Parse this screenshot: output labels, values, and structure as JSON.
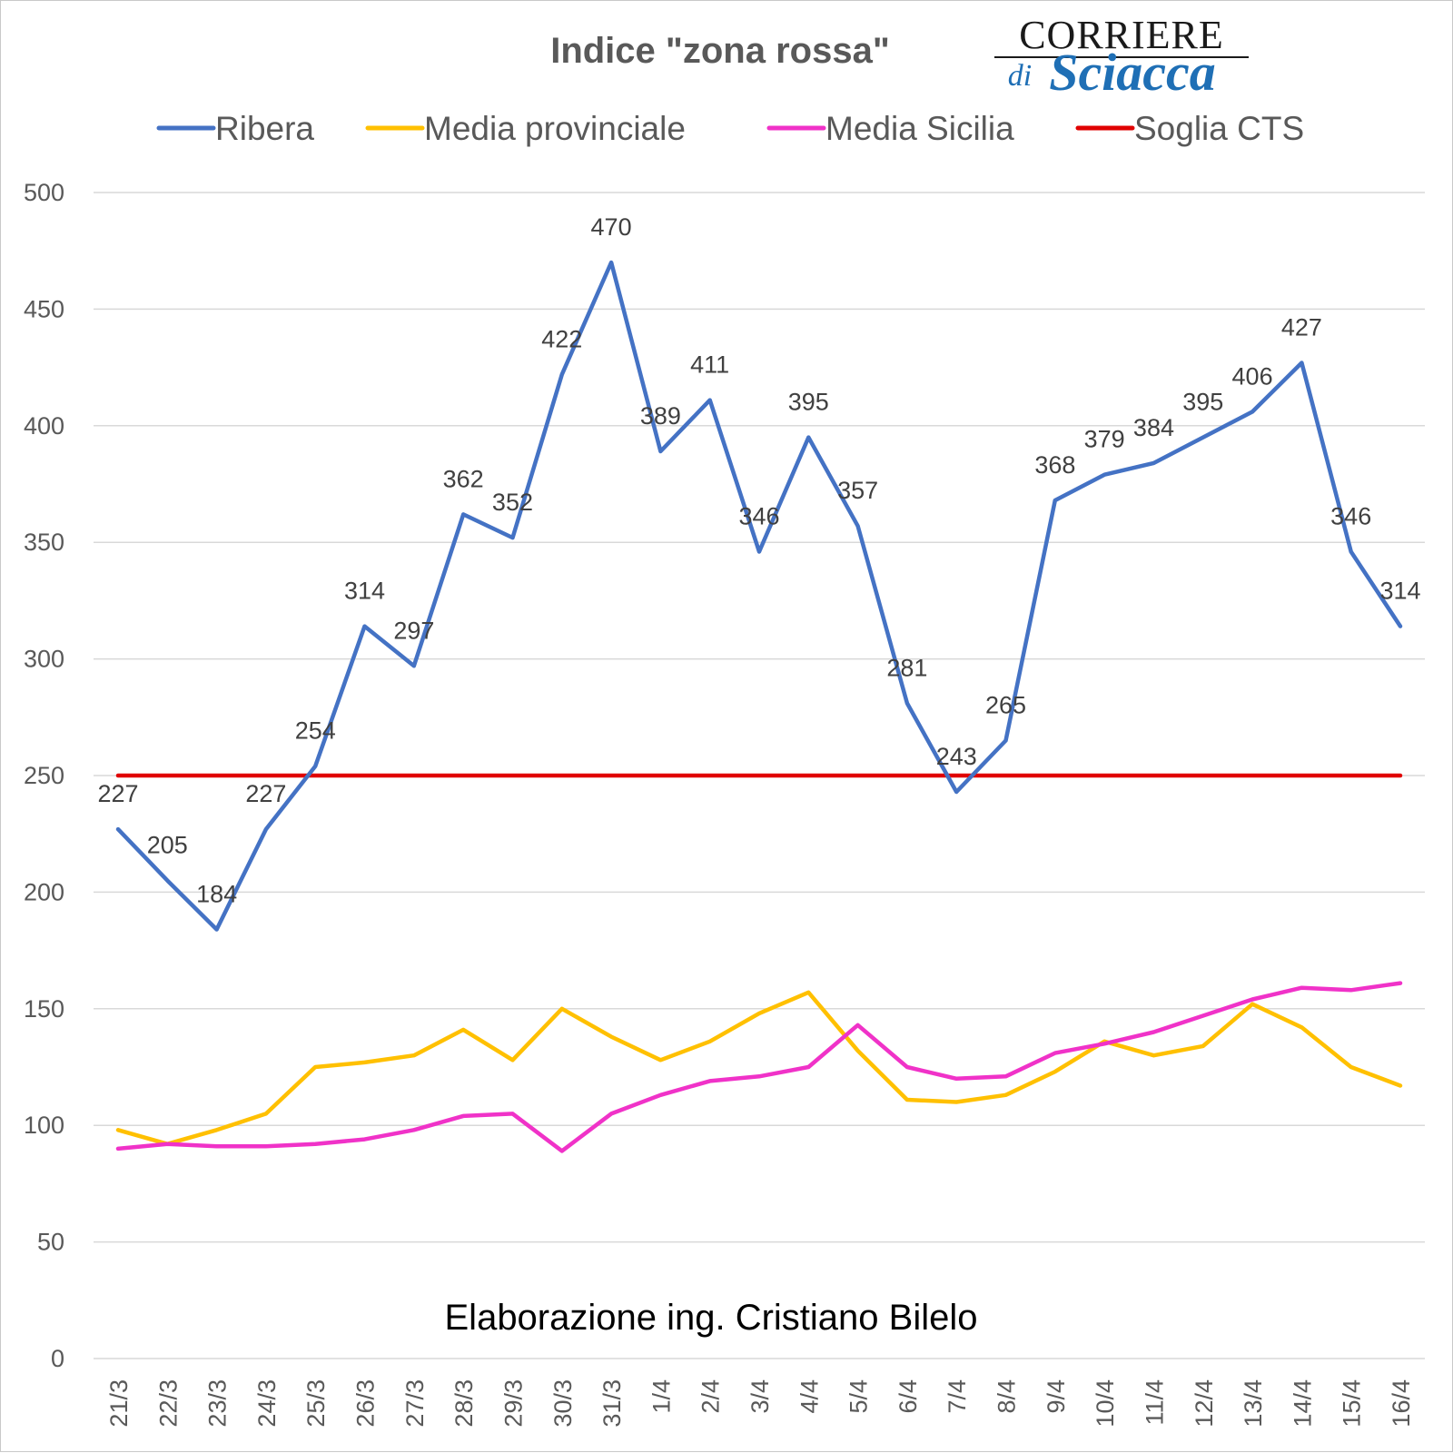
{
  "chart_data": {
    "type": "line",
    "title": "Indice \"zona rossa\"",
    "categories": [
      "21/3",
      "22/3",
      "23/3",
      "24/3",
      "25/3",
      "26/3",
      "27/3",
      "28/3",
      "29/3",
      "30/3",
      "31/3",
      "1/4",
      "2/4",
      "3/4",
      "4/4",
      "5/4",
      "6/4",
      "7/4",
      "8/4",
      "9/4",
      "10/4",
      "11/4",
      "12/4",
      "13/4",
      "14/4",
      "15/4",
      "16/4"
    ],
    "series": [
      {
        "name": "Ribera",
        "color": "#4472c4",
        "show_labels": true,
        "values": [
          227,
          205,
          184,
          227,
          254,
          314,
          297,
          362,
          352,
          422,
          470,
          389,
          411,
          346,
          395,
          357,
          281,
          243,
          265,
          368,
          379,
          384,
          395,
          406,
          427,
          346,
          314
        ],
        "labels": [
          "227",
          "205",
          "184",
          "227",
          "254",
          "314",
          "297",
          "362",
          "352",
          "422",
          "470",
          "389",
          "411",
          "346",
          "395",
          "357",
          "281",
          "243",
          "265",
          "368",
          "379",
          "384",
          "395",
          "406",
          "427",
          "346",
          "314"
        ]
      },
      {
        "name": "Media provinciale",
        "color": "#ffc000",
        "show_labels": false,
        "values": [
          98,
          92,
          98,
          105,
          125,
          127,
          130,
          141,
          128,
          150,
          138,
          128,
          136,
          148,
          157,
          132,
          111,
          110,
          113,
          123,
          136,
          130,
          134,
          152,
          142,
          125,
          117
        ]
      },
      {
        "name": "Media Sicilia",
        "color": "#f032c8",
        "show_labels": false,
        "values": [
          90,
          92,
          91,
          91,
          92,
          94,
          98,
          104,
          105,
          89,
          105,
          113,
          119,
          121,
          125,
          143,
          125,
          120,
          121,
          131,
          135,
          140,
          147,
          154,
          159,
          158,
          161
        ]
      },
      {
        "name": "Soglia CTS",
        "color": "#e00000",
        "show_labels": false,
        "values": [
          250,
          250,
          250,
          250,
          250,
          250,
          250,
          250,
          250,
          250,
          250,
          250,
          250,
          250,
          250,
          250,
          250,
          250,
          250,
          250,
          250,
          250,
          250,
          250,
          250,
          250,
          250
        ]
      }
    ],
    "ylim": [
      0,
      500
    ],
    "yticks": [
      "0",
      "50",
      "100",
      "150",
      "200",
      "250",
      "300",
      "350",
      "400",
      "450",
      "500"
    ],
    "grid": true,
    "legend_position": "top",
    "credit": "Elaborazione ing. Cristiano Bilelo"
  },
  "logo": {
    "top": "CORRIERE",
    "di": "di",
    "script": "Sciacca"
  }
}
